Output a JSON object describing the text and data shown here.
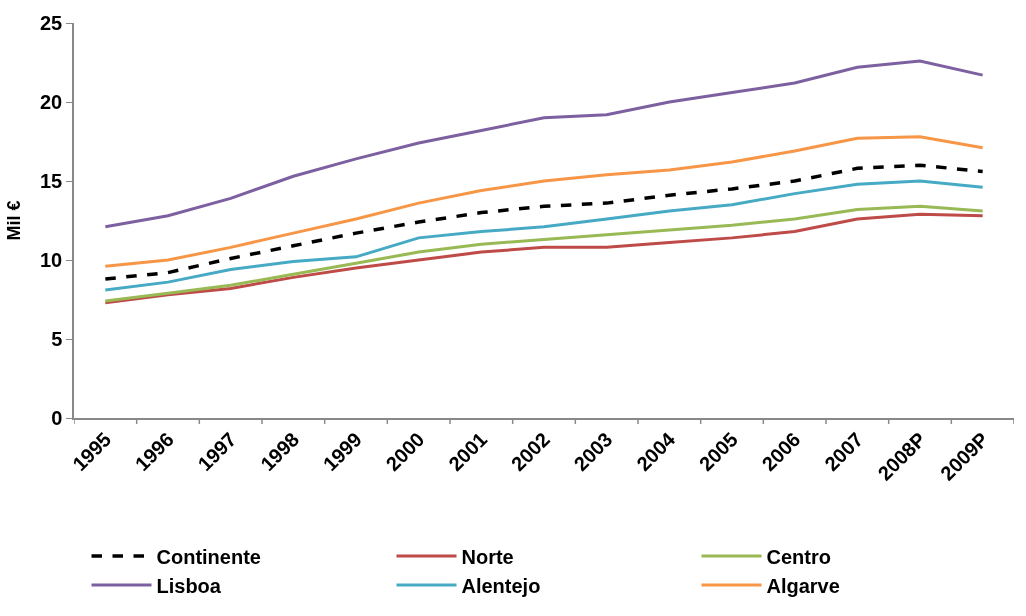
{
  "chart_data": {
    "type": "line",
    "ylabel": "Mil €",
    "categories": [
      "1995",
      "1996",
      "1997",
      "1998",
      "1999",
      "2000",
      "2001",
      "2002",
      "2003",
      "2004",
      "2005",
      "2006",
      "2007",
      "2008P",
      "2009P"
    ],
    "series": [
      {
        "name": "Continente",
        "color": "#000000",
        "line_style": "dashed",
        "values": [
          8.8,
          9.2,
          10.1,
          10.9,
          11.7,
          12.4,
          13.0,
          13.4,
          13.6,
          14.1,
          14.5,
          15.0,
          15.8,
          16.0,
          15.6
        ]
      },
      {
        "name": "Norte",
        "color": "#be4b48",
        "values": [
          7.3,
          7.8,
          8.2,
          8.9,
          9.5,
          10.0,
          10.5,
          10.8,
          10.8,
          11.1,
          11.4,
          11.8,
          12.6,
          12.9,
          12.8
        ]
      },
      {
        "name": "Centro",
        "color": "#98b954",
        "values": [
          7.4,
          7.9,
          8.4,
          9.1,
          9.8,
          10.5,
          11.0,
          11.3,
          11.6,
          11.9,
          12.2,
          12.6,
          13.2,
          13.4,
          13.1
        ]
      },
      {
        "name": "Lisboa",
        "color": "#7d60a0",
        "values": [
          12.1,
          12.8,
          13.9,
          15.3,
          16.4,
          17.4,
          18.2,
          19.0,
          19.2,
          20.0,
          20.6,
          21.2,
          22.2,
          22.6,
          21.7
        ]
      },
      {
        "name": "Alentejo",
        "color": "#46aac5",
        "values": [
          8.1,
          8.6,
          9.4,
          9.9,
          10.2,
          11.4,
          11.8,
          12.1,
          12.6,
          13.1,
          13.5,
          14.2,
          14.8,
          15.0,
          14.6
        ]
      },
      {
        "name": "Algarve",
        "color": "#f79646",
        "values": [
          9.6,
          10.0,
          10.8,
          11.7,
          12.6,
          13.6,
          14.4,
          15.0,
          15.4,
          15.7,
          16.2,
          16.9,
          17.7,
          17.8,
          17.1
        ]
      }
    ],
    "ylim": [
      0,
      25
    ],
    "yticks": [
      0,
      5,
      10,
      15,
      20,
      25
    ],
    "legend": "bottom",
    "line_style": "solid",
    "marker": "none"
  }
}
